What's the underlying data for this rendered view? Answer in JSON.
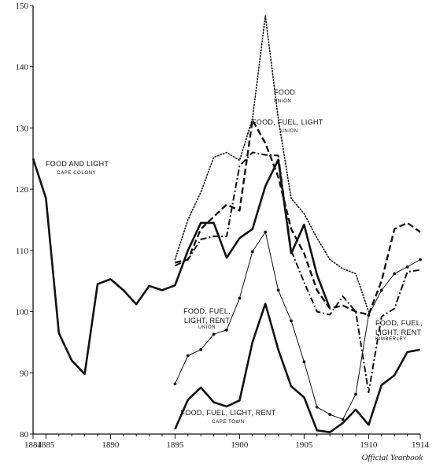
{
  "chart_data": {
    "type": "line",
    "credit": "Official Yearbook",
    "xlim": [
      1884,
      1914
    ],
    "ylim": [
      80,
      150
    ],
    "x_ticks": [
      1884,
      1885,
      1890,
      1895,
      1900,
      1905,
      1910,
      1914
    ],
    "y_ticks": [
      80,
      90,
      100,
      110,
      120,
      130,
      140,
      150
    ],
    "grid": false,
    "series": [
      {
        "id": "cape-colony",
        "label": [
          "FOOD AND LIGHT",
          "CAPE COLONY"
        ],
        "style": "thick-solid",
        "x": [
          1884,
          1885,
          1886,
          1887,
          1888,
          1889,
          1890,
          1891,
          1892,
          1893,
          1894,
          1895,
          1896,
          1897,
          1898,
          1899,
          1900,
          1901,
          1902,
          1903,
          1904,
          1905,
          1906,
          1907
        ],
        "y": [
          125,
          118.5,
          96.5,
          92,
          89.8,
          104.5,
          105.3,
          103.5,
          101.2,
          104.2,
          103.5,
          104.3,
          110,
          114.5,
          114.5,
          108.8,
          112,
          113.5,
          120.5,
          124.8,
          109.5,
          114.2,
          106,
          100.5
        ]
      },
      {
        "id": "food-union",
        "label": [
          "FOOD",
          "UNION"
        ],
        "style": "dotted",
        "x": [
          1895,
          1896,
          1897,
          1898,
          1899,
          1900,
          1901,
          1902,
          1903,
          1904,
          1905,
          1906,
          1907,
          1908,
          1909,
          1910
        ],
        "y": [
          108.5,
          115,
          119.5,
          125.2,
          126,
          124.7,
          131.5,
          148.3,
          131.5,
          118.5,
          116,
          112,
          108.5,
          107,
          106.2,
          100
        ],
        "max_label": "148.3"
      },
      {
        "id": "food-fuel-light-union",
        "label": [
          "FOOD, FUEL, LIGHT",
          "UNION"
        ],
        "style": "dashed",
        "x": [
          1895,
          1896,
          1897,
          1898,
          1899,
          1900,
          1901,
          1902,
          1903,
          1904,
          1905,
          1906,
          1907,
          1908,
          1909,
          1910,
          1911,
          1912,
          1913,
          1914
        ],
        "y": [
          108,
          108.5,
          113.5,
          115.5,
          117.5,
          116.5,
          131.3,
          127.5,
          122,
          113.5,
          109.5,
          103.5,
          100.5,
          101,
          100,
          99.5,
          105,
          113.5,
          114.5,
          113
        ]
      },
      {
        "id": "food-fuel-light-rent-kimberley",
        "label": [
          "FOOD, FUEL,",
          "LIGHT, RENT",
          "KIMBERLEY"
        ],
        "style": "dash-dot",
        "x": [
          1895,
          1896,
          1897,
          1898,
          1899,
          1900,
          1901,
          1902,
          1903,
          1904,
          1905,
          1906,
          1907,
          1908,
          1909,
          1910,
          1911,
          1912,
          1913,
          1914
        ],
        "y": [
          107.5,
          108.5,
          111.8,
          112.3,
          112.3,
          123.8,
          126,
          125.6,
          125.5,
          110,
          104.8,
          100,
          99.5,
          102.5,
          100,
          86.8,
          99.2,
          100.5,
          106.5,
          106.8
        ]
      },
      {
        "id": "food-fuel-light-rent-union",
        "label": [
          "FOOD, FUEL,",
          "LIGHT, RENT",
          "UNION"
        ],
        "style": "thin-solid-markers",
        "x": [
          1895,
          1896,
          1897,
          1898,
          1899,
          1900,
          1901,
          1902,
          1903,
          1904,
          1905,
          1906,
          1907,
          1908,
          1909,
          1910,
          1911,
          1912,
          1913,
          1914
        ],
        "y": [
          88.2,
          92.8,
          93.8,
          96.3,
          97,
          102.2,
          109.8,
          113,
          103.5,
          98.5,
          91.8,
          84.4,
          83.2,
          82.4,
          86.5,
          99.4,
          103.5,
          106.2,
          107.3,
          108.5
        ]
      },
      {
        "id": "food-fuel-light-rent-cape-town",
        "label": [
          "FOOD, FUEL, LIGHT, RENT",
          "CAPE TOWN"
        ],
        "style": "thick-solid",
        "x": [
          1895,
          1896,
          1897,
          1898,
          1899,
          1900,
          1901,
          1902,
          1903,
          1904,
          1905,
          1906,
          1907,
          1908,
          1909,
          1910,
          1911,
          1912,
          1913,
          1914
        ],
        "y": [
          80.8,
          85.6,
          87.6,
          85.2,
          84.5,
          85.5,
          95,
          101.3,
          93.8,
          87.8,
          86,
          80.6,
          80.3,
          81.8,
          84,
          81.5,
          88,
          89.6,
          93.4,
          93.8
        ]
      }
    ]
  }
}
